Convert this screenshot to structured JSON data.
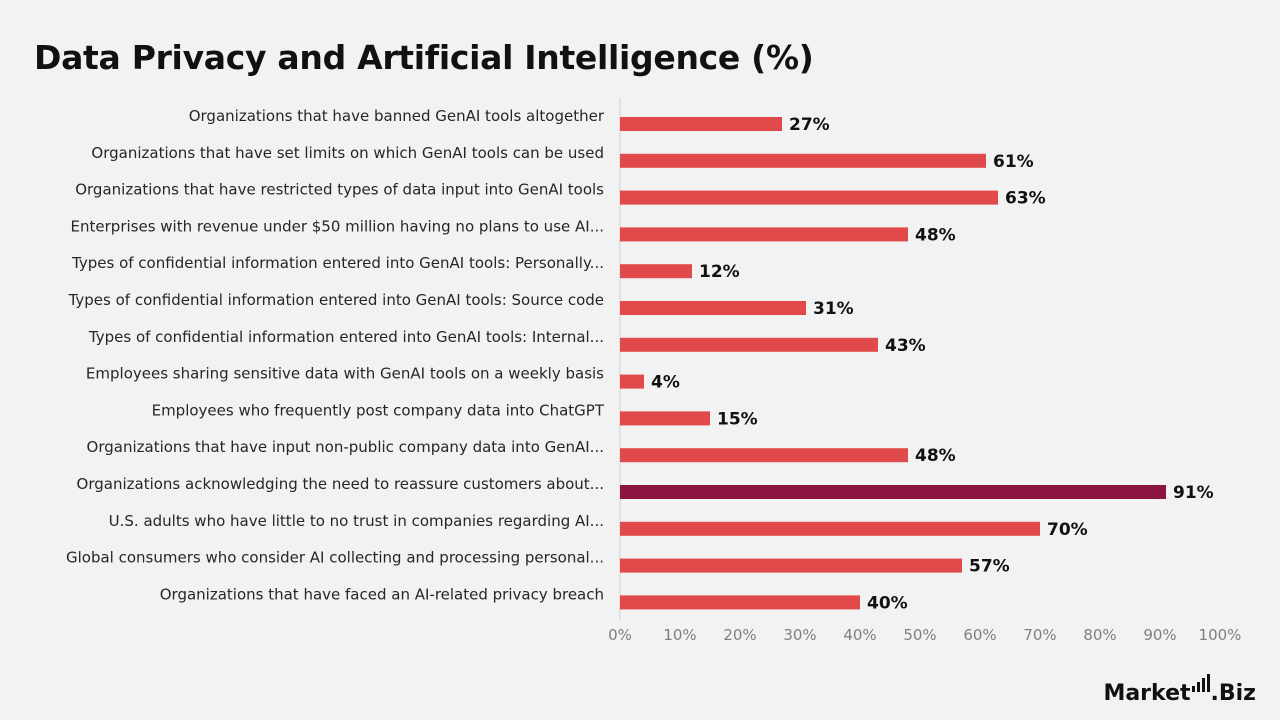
{
  "chart_data": {
    "type": "bar",
    "orientation": "horizontal",
    "title": "Data Privacy and Artificial Intelligence (%)",
    "categories": [
      "Organizations that have banned GenAI tools altogether",
      "Organizations that have set limits on which GenAI tools can be used",
      "Organizations that have restricted types of data input into GenAI tools",
      "Enterprises with revenue under $50 million having no plans to use AI...",
      "Types of confidential information entered into GenAI tools: Personally...",
      "Types of confidential information entered into GenAI tools: Source code",
      "Types of confidential information entered into GenAI tools: Internal...",
      "Employees sharing sensitive data with GenAI tools on a weekly basis",
      "Employees who frequently post company data into ChatGPT",
      "Organizations that have input non-public company data into GenAI...",
      "Organizations acknowledging the need to reassure customers about...",
      "U.S. adults who have little to no trust in companies regarding AI...",
      "Global consumers who consider AI collecting and processing personal...",
      "Organizations that have faced an AI-related privacy breach"
    ],
    "values": [
      27,
      61,
      63,
      48,
      12,
      31,
      43,
      4,
      15,
      48,
      91,
      70,
      57,
      40
    ],
    "value_labels": [
      "27%",
      "61%",
      "63%",
      "48%",
      "12%",
      "31%",
      "43%",
      "4%",
      "15%",
      "48%",
      "91%",
      "70%",
      "57%",
      "40%"
    ],
    "xlim": [
      0,
      100
    ],
    "x_ticks": [
      "0%",
      "10%",
      "20%",
      "30%",
      "40%",
      "50%",
      "60%",
      "70%",
      "80%",
      "90%",
      "100%"
    ],
    "grid": false,
    "colors": {
      "default": "#e04a4a",
      "highlight": "#8b1540"
    },
    "highlight_index": 10
  },
  "brand": {
    "name_left": "Market",
    "name_right": ".Biz"
  }
}
